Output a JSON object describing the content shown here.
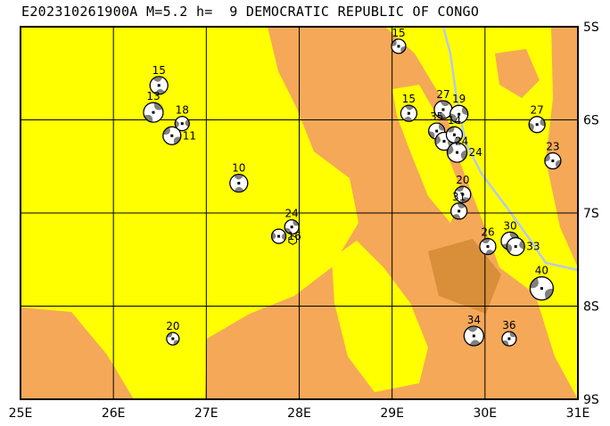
{
  "title": "E202310261900A M=5.2 h=  9 DEMOCRATIC REPUBLIC OF CONGO",
  "map": {
    "lon_range": [
      25,
      31
    ],
    "lat_range_south": [
      5,
      9
    ],
    "lon_labels": [
      "25E",
      "26E",
      "27E",
      "28E",
      "29E",
      "30E",
      "31E"
    ],
    "lat_labels": [
      "5S",
      "6S",
      "7S",
      "8S",
      "9S"
    ],
    "colors": {
      "low": "#FFFF00",
      "high": "#F5A858",
      "highest": "#D98E3A",
      "lake": "#B8C8E8",
      "compression": "#808080"
    }
  },
  "events": [
    {
      "depth": "15",
      "lon": 29.07,
      "lat": 5.21
    },
    {
      "depth": "15",
      "lon": 26.49,
      "lat": 5.63
    },
    {
      "depth": "13",
      "lon": 26.43,
      "lat": 5.92
    },
    {
      "depth": "18",
      "lon": 26.74,
      "lat": 6.04
    },
    {
      "depth": "11",
      "lon": 26.63,
      "lat": 6.17
    },
    {
      "depth": "10",
      "lon": 27.35,
      "lat": 6.68
    },
    {
      "depth": "24",
      "lon": 27.92,
      "lat": 7.15
    },
    {
      "depth": "16",
      "lon": 27.78,
      "lat": 7.25
    },
    {
      "depth": "20",
      "lon": 26.64,
      "lat": 8.35
    },
    {
      "depth": "15",
      "lon": 29.18,
      "lat": 5.93
    },
    {
      "depth": "35",
      "lon": 29.48,
      "lat": 6.12
    },
    {
      "depth": "24",
      "lon": 29.56,
      "lat": 6.23
    },
    {
      "depth": "14",
      "lon": 29.67,
      "lat": 6.16
    },
    {
      "depth": "27",
      "lon": 29.55,
      "lat": 5.89
    },
    {
      "depth": "19",
      "lon": 29.72,
      "lat": 5.94
    },
    {
      "depth": "24",
      "lon": 29.7,
      "lat": 6.35
    },
    {
      "depth": "20",
      "lon": 29.76,
      "lat": 6.8
    },
    {
      "depth": "31",
      "lon": 29.72,
      "lat": 6.98
    },
    {
      "depth": "27",
      "lon": 30.56,
      "lat": 6.05
    },
    {
      "depth": "23",
      "lon": 30.73,
      "lat": 6.44
    },
    {
      "depth": "26",
      "lon": 30.03,
      "lat": 7.36
    },
    {
      "depth": "30",
      "lon": 30.27,
      "lat": 7.3
    },
    {
      "depth": "33",
      "lon": 30.33,
      "lat": 7.36
    },
    {
      "depth": "40",
      "lon": 30.61,
      "lat": 7.81
    },
    {
      "depth": "34",
      "lon": 29.88,
      "lat": 8.32
    },
    {
      "depth": "36",
      "lon": 30.26,
      "lat": 8.35
    }
  ]
}
